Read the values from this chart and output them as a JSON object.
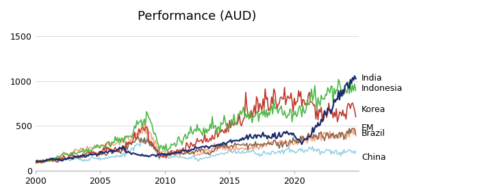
{
  "title": "Performance (AUD)",
  "title_fontsize": 13,
  "ylim": [
    0,
    1600
  ],
  "yticks": [
    0,
    500,
    1000,
    1500
  ],
  "xtick_years": [
    2000,
    2005,
    2010,
    2015,
    2020
  ],
  "xlim": [
    2000.0,
    2025.0
  ],
  "line_colors": {
    "Indonesia": "#4db847",
    "India": "#1a2b6b",
    "Korea": "#c0392b",
    "EM": "#8B6347",
    "Brazil": "#f4a582",
    "China": "#92d0e8"
  },
  "line_widths": {
    "Indonesia": 1.2,
    "India": 1.6,
    "Korea": 1.2,
    "EM": 1.2,
    "Brazil": 1.2,
    "China": 1.2
  },
  "legend_labels": [
    "Indonesia",
    "India",
    "Korea",
    "EM",
    "Brazil",
    "China"
  ],
  "background_color": "#ffffff",
  "grid_color": "#cccccc",
  "label_fontsize": 9,
  "n_pts": 298
}
